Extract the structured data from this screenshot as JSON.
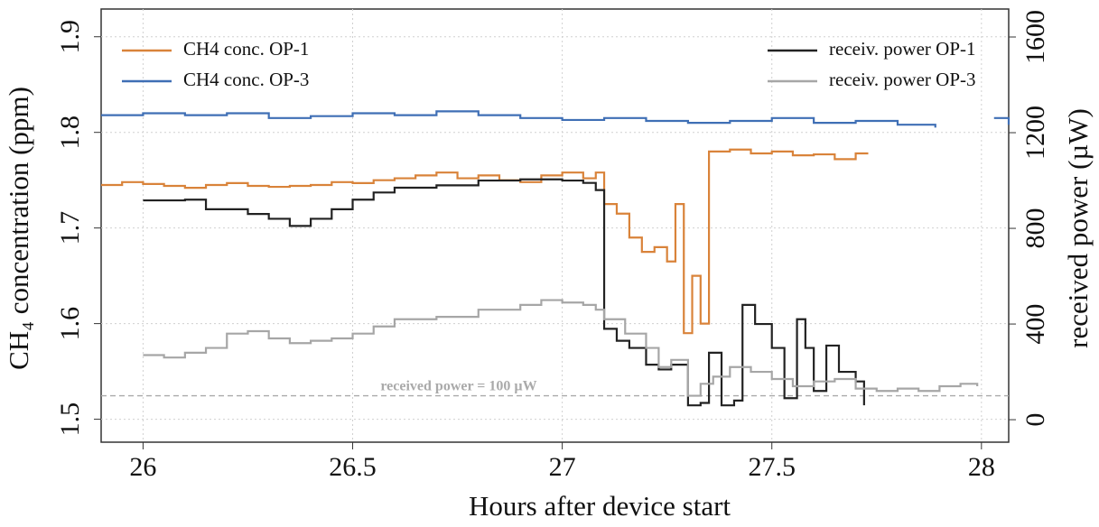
{
  "chart_data": {
    "type": "line",
    "step": true,
    "x_label": "Hours after device start",
    "y_label": "CH₄ concentration (ppm)",
    "y2_label": "received power (µW)",
    "xlim": [
      25.9,
      28.065
    ],
    "xticks": [
      26,
      26.5,
      27,
      27.5,
      28
    ],
    "ylim": [
      1.476,
      1.929
    ],
    "yticks": [
      1.5,
      1.6,
      1.7,
      1.8,
      1.9
    ],
    "y2lim": [
      -94,
      1717
    ],
    "y2ticks": [
      0,
      400,
      800,
      1200,
      1600
    ],
    "grid": true,
    "reference_line": {
      "axis": "y2",
      "value": 100,
      "label": "received power = 100 µW",
      "color": "#aaaaaa"
    },
    "series": [
      {
        "name": "CH4 conc. OP-1",
        "color": "#d9833a",
        "axis": "y",
        "x": [
          25.9,
          25.95,
          26.0,
          26.05,
          26.1,
          26.15,
          26.2,
          26.25,
          26.3,
          26.35,
          26.4,
          26.45,
          26.5,
          26.55,
          26.6,
          26.65,
          26.7,
          26.75,
          26.8,
          26.85,
          26.9,
          26.95,
          27.0,
          27.05,
          27.08,
          27.1,
          27.13,
          27.16,
          27.19,
          27.22,
          27.25,
          27.27,
          27.29,
          27.31,
          27.33,
          27.35,
          27.37,
          27.4,
          27.45,
          27.5,
          27.55,
          27.6,
          27.65,
          27.7,
          27.73
        ],
        "values": [
          1.745,
          1.748,
          1.746,
          1.744,
          1.742,
          1.745,
          1.747,
          1.744,
          1.743,
          1.744,
          1.745,
          1.748,
          1.747,
          1.75,
          1.752,
          1.755,
          1.758,
          1.752,
          1.755,
          1.75,
          1.748,
          1.755,
          1.758,
          1.752,
          1.758,
          1.725,
          1.715,
          1.69,
          1.675,
          1.68,
          1.665,
          1.725,
          1.59,
          1.65,
          1.6,
          1.78,
          1.78,
          1.782,
          1.778,
          1.78,
          1.776,
          1.777,
          1.772,
          1.778,
          1.778
        ]
      },
      {
        "name": "CH4 conc. OP-3",
        "color": "#3f6fb5",
        "axis": "y",
        "x": [
          25.9,
          26.0,
          26.1,
          26.2,
          26.3,
          26.4,
          26.5,
          26.6,
          26.7,
          26.8,
          26.9,
          27.0,
          27.1,
          27.2,
          27.3,
          27.4,
          27.5,
          27.6,
          27.7,
          27.8,
          27.89,
          27.95,
          28.03,
          28.065
        ],
        "values": [
          1.818,
          1.82,
          1.818,
          1.82,
          1.815,
          1.817,
          1.82,
          1.818,
          1.822,
          1.818,
          1.815,
          1.813,
          1.815,
          1.812,
          1.81,
          1.812,
          1.815,
          1.81,
          1.812,
          1.808,
          1.805,
          null,
          1.815,
          1.808
        ]
      },
      {
        "name": "receiv. power OP-1",
        "color": "#222222",
        "axis": "y2",
        "x": [
          26.0,
          26.1,
          26.15,
          26.25,
          26.3,
          26.35,
          26.4,
          26.45,
          26.5,
          26.55,
          26.6,
          26.7,
          26.8,
          26.9,
          27.0,
          27.05,
          27.08,
          27.1,
          27.13,
          27.16,
          27.2,
          27.23,
          27.26,
          27.3,
          27.33,
          27.35,
          27.38,
          27.41,
          27.43,
          27.46,
          27.5,
          27.53,
          27.56,
          27.58,
          27.6,
          27.63,
          27.66,
          27.7,
          27.72
        ],
        "values": [
          917,
          920,
          880,
          860,
          840,
          810,
          840,
          880,
          920,
          950,
          970,
          980,
          1000,
          1005,
          1000,
          990,
          960,
          380,
          330,
          300,
          230,
          210,
          230,
          60,
          70,
          280,
          60,
          80,
          480,
          400,
          300,
          90,
          420,
          300,
          120,
          310,
          200,
          160,
          60
        ]
      },
      {
        "name": "receiv. power OP-3",
        "color": "#a6a6a6",
        "axis": "y2",
        "x": [
          26.0,
          26.05,
          26.1,
          26.15,
          26.2,
          26.25,
          26.3,
          26.35,
          26.4,
          26.45,
          26.5,
          26.55,
          26.6,
          26.7,
          26.8,
          26.9,
          26.95,
          27.0,
          27.05,
          27.08,
          27.1,
          27.15,
          27.2,
          27.23,
          27.26,
          27.3,
          27.33,
          27.36,
          27.4,
          27.45,
          27.5,
          27.55,
          27.6,
          27.65,
          27.7,
          27.75,
          27.8,
          27.85,
          27.9,
          27.95,
          27.99
        ],
        "values": [
          270,
          260,
          280,
          300,
          360,
          370,
          340,
          320,
          330,
          340,
          360,
          390,
          420,
          430,
          460,
          480,
          500,
          490,
          480,
          460,
          420,
          360,
          300,
          220,
          250,
          100,
          150,
          180,
          220,
          200,
          170,
          140,
          160,
          170,
          130,
          120,
          130,
          120,
          140,
          150,
          140
        ]
      }
    ]
  }
}
